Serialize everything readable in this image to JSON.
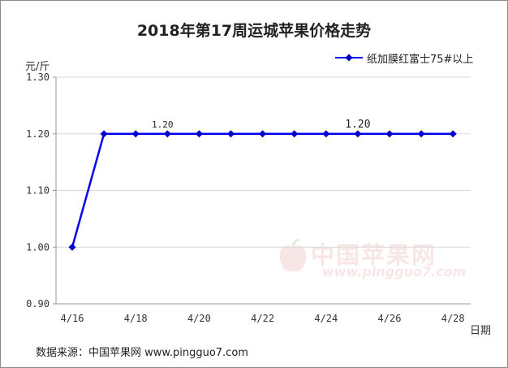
{
  "chart_data": {
    "type": "line",
    "title": "2018年第17周运城苹果价格走势",
    "ylabel": "元/斤",
    "xlabel": "日期",
    "ylim": [
      0.9,
      1.3
    ],
    "yticks": [
      "0.90",
      "1.00",
      "1.10",
      "1.20",
      "1.30"
    ],
    "x": [
      "4/16",
      "4/17",
      "4/18",
      "4/19",
      "4/20",
      "4/21",
      "4/22",
      "4/23",
      "4/24",
      "4/25",
      "4/26",
      "4/27",
      "4/28"
    ],
    "xtick_labels": [
      "4/16",
      "",
      "4/18",
      "",
      "4/20",
      "",
      "4/22",
      "",
      "4/24",
      "",
      "4/26",
      "",
      "4/28"
    ],
    "series": [
      {
        "name": "纸加膜红富士75#以上",
        "color": "#0000ee",
        "values": [
          1.0,
          1.2,
          1.2,
          1.2,
          1.2,
          1.2,
          1.2,
          1.2,
          1.2,
          1.2,
          1.2,
          1.2,
          1.2
        ]
      }
    ],
    "data_labels": [
      {
        "index": 3,
        "text": "1.20"
      },
      {
        "index": 9,
        "text": "1.20"
      }
    ],
    "grid": "horizontal",
    "legend_position": "top-right"
  },
  "source": "数据来源：中国苹果网 www.pingguo7.com",
  "watermark": {
    "text": "中国苹果网",
    "url": "www.pingguo7.com"
  },
  "colors": {
    "line": "#0000ee",
    "marker": "#0000cc",
    "grid": "#d9d9d9",
    "axis": "#999999"
  }
}
